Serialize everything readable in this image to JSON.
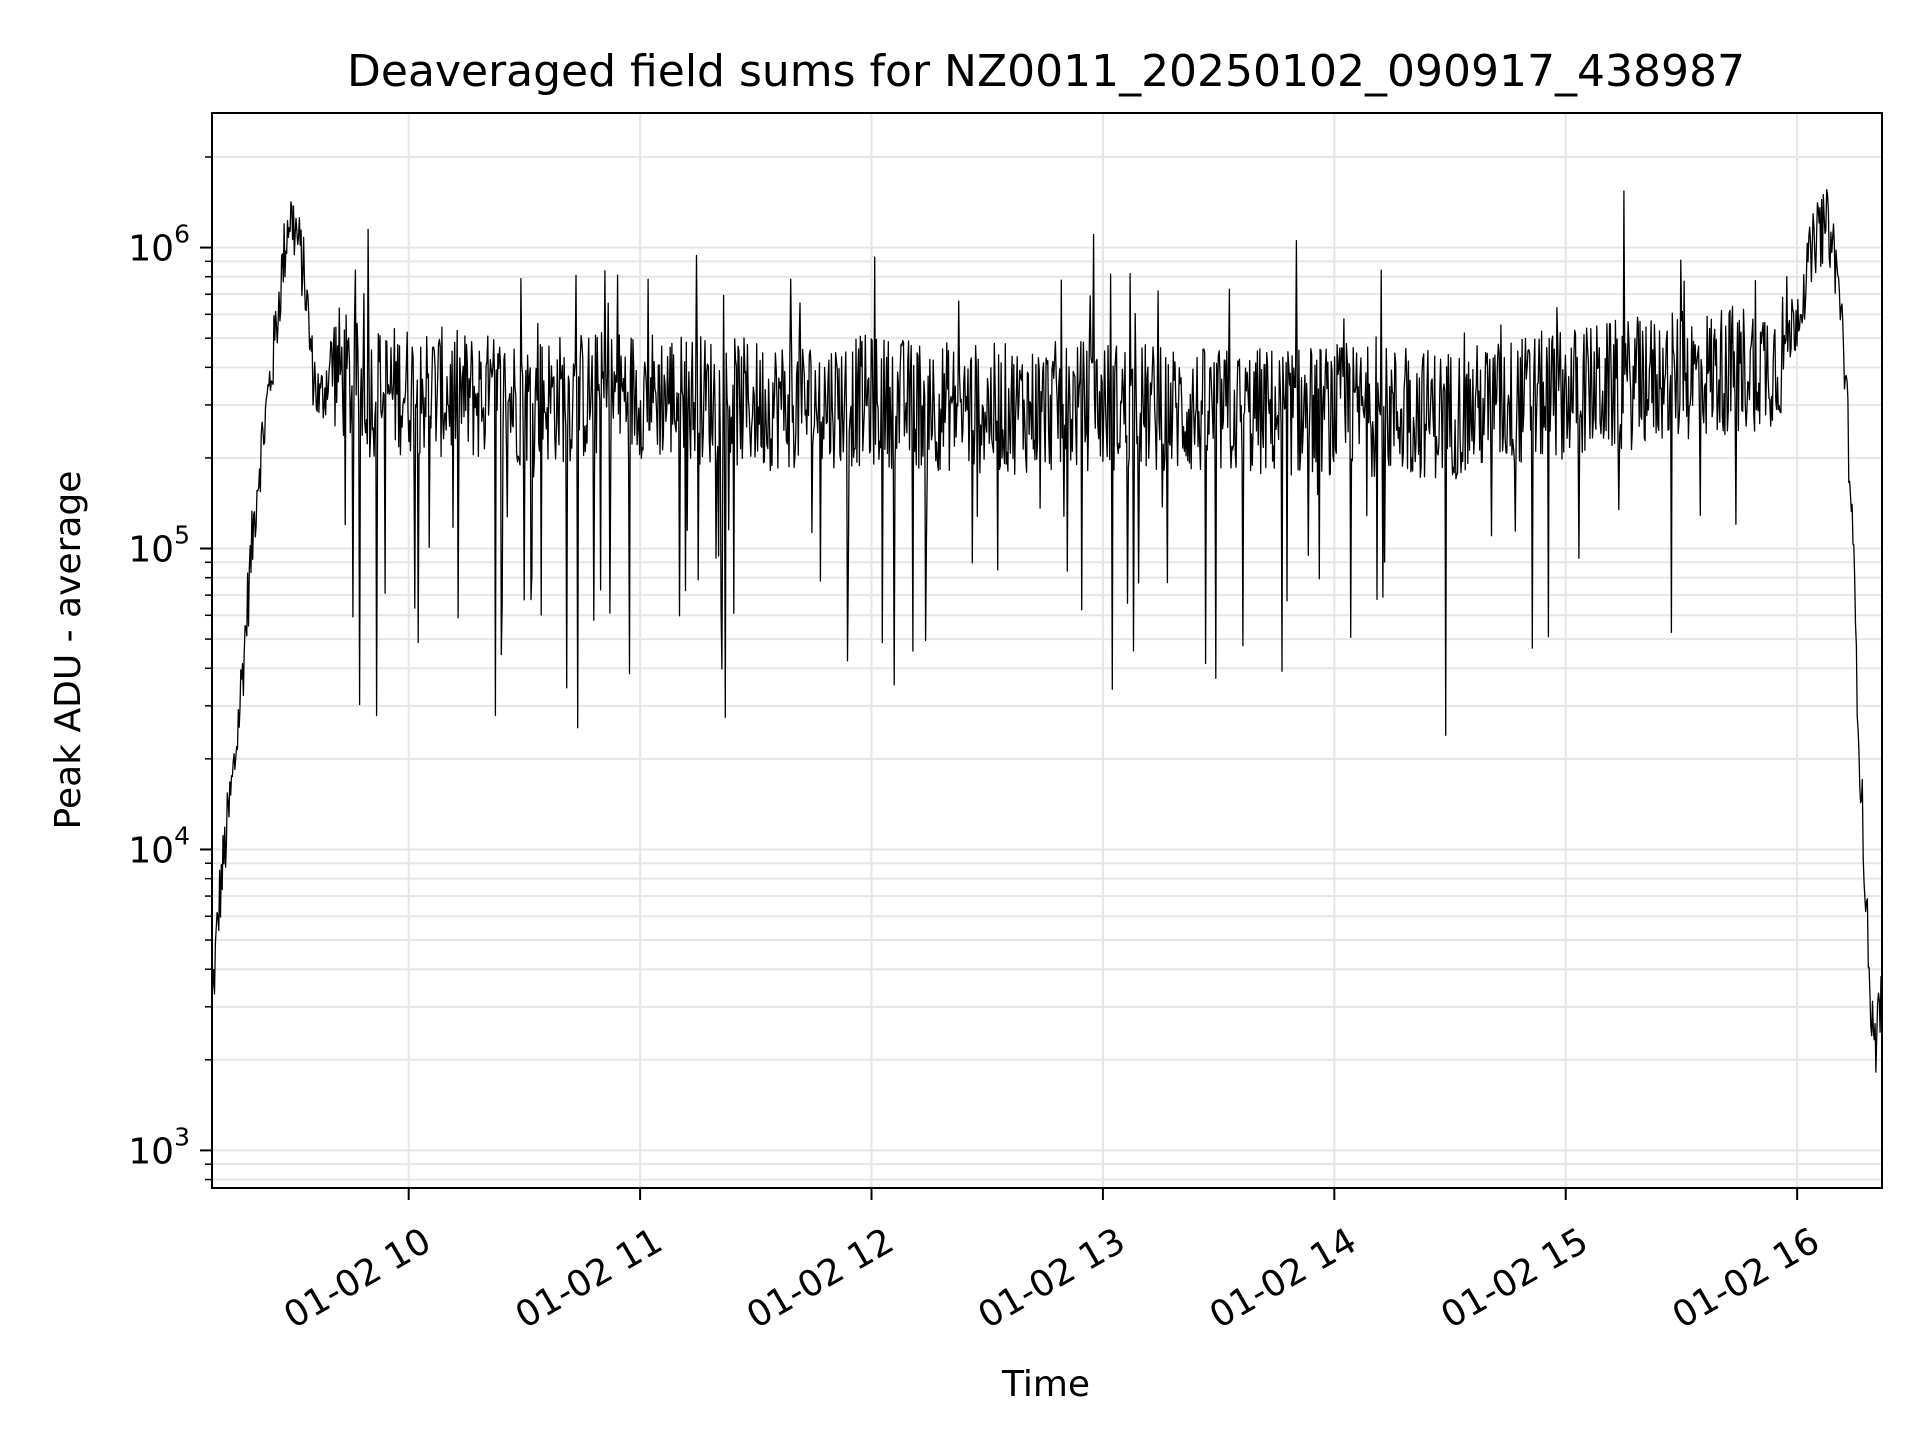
{
  "chart_data": {
    "type": "line",
    "title": "Deaveraged field sums for NZ0011_20250102_090917_438987",
    "xlabel": "Time",
    "ylabel": "Peak ADU - average",
    "x_scale": "time",
    "y_scale": "log",
    "xlim": [
      "2025-01-02 09:09",
      "2025-01-02 16:22"
    ],
    "ylim": [
      750,
      2800000
    ],
    "x_ticks": [
      {
        "value": "2025-01-02 10:00",
        "label": "01-02 10"
      },
      {
        "value": "2025-01-02 11:00",
        "label": "01-02 11"
      },
      {
        "value": "2025-01-02 12:00",
        "label": "01-02 12"
      },
      {
        "value": "2025-01-02 13:00",
        "label": "01-02 13"
      },
      {
        "value": "2025-01-02 14:00",
        "label": "01-02 14"
      },
      {
        "value": "2025-01-02 15:00",
        "label": "01-02 15"
      },
      {
        "value": "2025-01-02 16:00",
        "label": "01-02 16"
      }
    ],
    "y_ticks": [
      {
        "value": 1000,
        "base": "10",
        "exp": "3"
      },
      {
        "value": 10000,
        "base": "10",
        "exp": "4"
      },
      {
        "value": 100000,
        "base": "10",
        "exp": "5"
      },
      {
        "value": 1000000,
        "base": "10",
        "exp": "6"
      }
    ],
    "grid": true,
    "minor_grid_y": true,
    "line_color": "#000000",
    "grid_color": "#e6e6e6",
    "series": [
      {
        "x": [
          "2025-01-02 09:09",
          "2025-01-02 09:11",
          "2025-01-02 09:13",
          "2025-01-02 09:15",
          "2025-01-02 09:17",
          "2025-01-02 09:19",
          "2025-01-02 09:21",
          "2025-01-02 09:23",
          "2025-01-02 09:25",
          "2025-01-02 09:27",
          "2025-01-02 09:29",
          "2025-01-02 09:31",
          "2025-01-02 09:33",
          "2025-01-02 09:35",
          "2025-01-02 09:37",
          "2025-01-02 09:40",
          "2025-01-02 09:45",
          "2025-01-02 09:50",
          "2025-01-02 10:00",
          "2025-01-02 10:15",
          "2025-01-02 10:30",
          "2025-01-02 11:00",
          "2025-01-02 11:30",
          "2025-01-02 12:00",
          "2025-01-02 12:30",
          "2025-01-02 13:00",
          "2025-01-02 13:30",
          "2025-01-02 14:00",
          "2025-01-02 14:30",
          "2025-01-02 15:00",
          "2025-01-02 15:30",
          "2025-01-02 15:55",
          "2025-01-02 16:00",
          "2025-01-02 16:05",
          "2025-01-02 16:08",
          "2025-01-02 16:10",
          "2025-01-02 16:12",
          "2025-01-02 16:14",
          "2025-01-02 16:16",
          "2025-01-02 16:18",
          "2025-01-02 16:20",
          "2025-01-02 16:21"
        ],
        "y": [
          3000,
          7000,
          12000,
          20000,
          40000,
          90000,
          180000,
          280000,
          450000,
          800000,
          1300000,
          1100000,
          800000,
          400000,
          300000,
          420000,
          350000,
          330000,
          340000,
          320000,
          310000,
          330000,
          300000,
          310000,
          290000,
          300000,
          280000,
          290000,
          280000,
          330000,
          370000,
          420000,
          600000,
          1100000,
          1200000,
          900000,
          500000,
          150000,
          25000,
          6000,
          2000,
          3000
        ]
      }
    ]
  }
}
